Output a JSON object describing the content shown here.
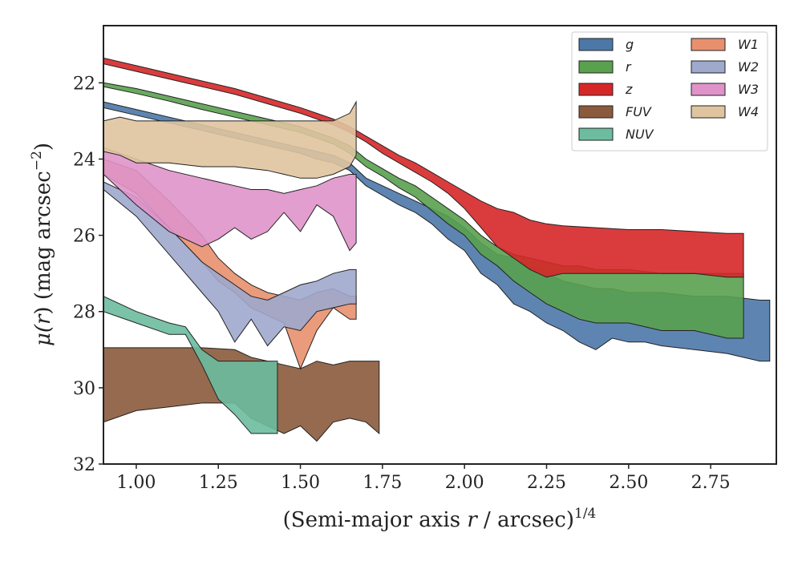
{
  "chart_data": {
    "type": "area",
    "x_axis": {
      "label_main": "(Semi-major axis ",
      "label_var": "r",
      "label_after": " / arcsec)",
      "label_exp": "1/4",
      "lim": [
        0.9,
        2.95
      ],
      "ticks": [
        1.0,
        1.25,
        1.5,
        1.75,
        2.0,
        2.25,
        2.5,
        2.75
      ],
      "tick_labels": [
        "1.00",
        "1.25",
        "1.50",
        "1.75",
        "2.00",
        "2.25",
        "2.50",
        "2.75"
      ]
    },
    "y_axis": {
      "label_mu": "μ(",
      "label_var": "r",
      "label_after": ") (mag arcsec",
      "label_exp": "−2",
      "label_close": ")",
      "lim": [
        32,
        20.5
      ],
      "inverted": true,
      "ticks": [
        22,
        24,
        26,
        28,
        30,
        32
      ],
      "tick_labels": [
        "22",
        "24",
        "26",
        "28",
        "30",
        "32"
      ]
    },
    "legend": {
      "placement": "top-right",
      "columns": 2
    },
    "series": [
      {
        "name": "g",
        "color": "#4c78a8",
        "x": [
          0.9,
          1.0,
          1.1,
          1.2,
          1.3,
          1.4,
          1.5,
          1.55,
          1.6,
          1.65,
          1.7,
          1.75,
          1.8,
          1.85,
          1.9,
          1.95,
          2.0,
          2.05,
          2.1,
          2.15,
          2.2,
          2.25,
          2.3,
          2.35,
          2.4,
          2.45,
          2.5,
          2.55,
          2.6,
          2.7,
          2.8,
          2.9,
          2.93
        ],
        "y_upper": [
          22.5,
          22.7,
          22.9,
          23.1,
          23.3,
          23.5,
          23.7,
          23.8,
          23.9,
          24.1,
          24.5,
          24.7,
          24.9,
          25.1,
          25.3,
          25.5,
          25.8,
          26.2,
          26.5,
          26.6,
          26.8,
          27.0,
          27.2,
          27.3,
          27.4,
          27.4,
          27.5,
          27.5,
          27.5,
          27.6,
          27.6,
          27.7,
          27.7
        ],
        "y_lower": [
          22.65,
          22.85,
          23.05,
          23.25,
          23.45,
          23.65,
          23.85,
          24.0,
          24.1,
          24.3,
          24.7,
          24.95,
          25.2,
          25.4,
          25.7,
          26.1,
          26.4,
          27.0,
          27.3,
          27.8,
          28.0,
          28.3,
          28.5,
          28.8,
          29.0,
          28.7,
          28.8,
          28.8,
          28.9,
          29.0,
          29.1,
          29.3,
          29.3
        ]
      },
      {
        "name": "r",
        "color": "#59a14f",
        "x": [
          0.9,
          1.0,
          1.1,
          1.2,
          1.3,
          1.4,
          1.5,
          1.55,
          1.6,
          1.65,
          1.7,
          1.75,
          1.8,
          1.85,
          1.9,
          1.95,
          2.0,
          2.05,
          2.1,
          2.15,
          2.2,
          2.25,
          2.3,
          2.35,
          2.4,
          2.45,
          2.5,
          2.6,
          2.7,
          2.8,
          2.85
        ],
        "y_upper": [
          22.0,
          22.15,
          22.35,
          22.55,
          22.75,
          22.95,
          23.15,
          23.3,
          23.45,
          23.65,
          24.0,
          24.25,
          24.5,
          24.7,
          25.0,
          25.3,
          25.6,
          26.0,
          26.3,
          26.5,
          26.6,
          26.7,
          26.8,
          26.8,
          26.9,
          26.9,
          26.9,
          27.0,
          27.0,
          27.0,
          27.0
        ],
        "y_lower": [
          22.1,
          22.28,
          22.48,
          22.7,
          22.9,
          23.1,
          23.3,
          23.45,
          23.6,
          23.85,
          24.2,
          24.45,
          24.75,
          25.0,
          25.35,
          25.7,
          26.0,
          26.5,
          26.8,
          27.2,
          27.5,
          27.8,
          28.0,
          28.2,
          28.3,
          28.3,
          28.3,
          28.5,
          28.5,
          28.7,
          28.7
        ]
      },
      {
        "name": "z",
        "color": "#d62728",
        "x": [
          0.9,
          1.0,
          1.1,
          1.2,
          1.3,
          1.4,
          1.5,
          1.55,
          1.6,
          1.65,
          1.7,
          1.75,
          1.8,
          1.85,
          1.9,
          1.95,
          2.0,
          2.05,
          2.1,
          2.15,
          2.2,
          2.25,
          2.3,
          2.4,
          2.5,
          2.6,
          2.7,
          2.8,
          2.85
        ],
        "y_upper": [
          21.35,
          21.55,
          21.75,
          21.95,
          22.15,
          22.4,
          22.65,
          22.8,
          22.95,
          23.15,
          23.4,
          23.65,
          23.9,
          24.1,
          24.35,
          24.6,
          24.85,
          25.1,
          25.3,
          25.4,
          25.6,
          25.7,
          25.75,
          25.8,
          25.85,
          25.85,
          25.9,
          25.95,
          25.95
        ],
        "y_lower": [
          21.5,
          21.7,
          21.9,
          22.1,
          22.3,
          22.55,
          22.8,
          22.95,
          23.1,
          23.3,
          23.55,
          23.85,
          24.1,
          24.35,
          24.6,
          24.9,
          25.3,
          25.8,
          26.3,
          26.6,
          26.9,
          27.1,
          27.0,
          27.0,
          27.0,
          27.0,
          27.0,
          27.1,
          27.1
        ]
      },
      {
        "name": "FUV",
        "color": "#8b5a3c",
        "x": [
          0.9,
          1.0,
          1.1,
          1.2,
          1.3,
          1.35,
          1.4,
          1.45,
          1.5,
          1.55,
          1.6,
          1.65,
          1.7,
          1.74
        ],
        "y_upper": [
          28.95,
          28.95,
          28.95,
          28.95,
          29.0,
          29.2,
          29.3,
          29.4,
          29.5,
          29.3,
          29.4,
          29.3,
          29.3,
          29.3
        ],
        "y_lower": [
          30.9,
          30.6,
          30.5,
          30.4,
          30.4,
          30.8,
          31.0,
          31.2,
          31.0,
          31.4,
          30.9,
          30.8,
          30.9,
          31.2
        ]
      },
      {
        "name": "NUV",
        "color": "#6cbda0",
        "x": [
          0.9,
          1.0,
          1.1,
          1.15,
          1.2,
          1.25,
          1.3,
          1.35,
          1.4,
          1.43
        ],
        "y_upper": [
          27.6,
          28.0,
          28.3,
          28.4,
          29.0,
          29.3,
          29.3,
          29.3,
          29.3,
          29.3
        ],
        "y_lower": [
          28.0,
          28.3,
          28.6,
          28.6,
          29.4,
          30.3,
          30.7,
          31.2,
          31.2,
          31.2
        ]
      },
      {
        "name": "W1",
        "color": "#e8906e",
        "x": [
          0.9,
          1.0,
          1.1,
          1.2,
          1.25,
          1.3,
          1.35,
          1.4,
          1.45,
          1.5,
          1.55,
          1.6,
          1.65,
          1.67
        ],
        "y_upper": [
          24.0,
          24.3,
          25.1,
          26.0,
          26.6,
          27.0,
          27.3,
          27.5,
          27.6,
          27.7,
          27.5,
          27.4,
          27.6,
          27.6
        ],
        "y_lower": [
          24.4,
          24.9,
          25.8,
          26.7,
          27.2,
          27.5,
          27.9,
          28.1,
          28.3,
          29.5,
          28.5,
          27.9,
          28.2,
          28.2
        ]
      },
      {
        "name": "W2",
        "color": "#9ea9cc",
        "x": [
          0.9,
          1.0,
          1.1,
          1.2,
          1.25,
          1.3,
          1.35,
          1.4,
          1.45,
          1.5,
          1.55,
          1.6,
          1.65,
          1.67
        ],
        "y_upper": [
          24.6,
          25.0,
          25.8,
          26.7,
          27.0,
          27.3,
          27.6,
          27.7,
          27.5,
          27.3,
          27.2,
          27.0,
          26.9,
          26.9
        ],
        "y_lower": [
          24.8,
          25.5,
          26.5,
          27.5,
          28.0,
          28.8,
          28.2,
          28.9,
          28.4,
          28.5,
          28.0,
          27.9,
          27.8,
          27.8
        ]
      },
      {
        "name": "W3",
        "color": "#df93c9",
        "x": [
          0.9,
          1.0,
          1.1,
          1.2,
          1.25,
          1.3,
          1.35,
          1.4,
          1.45,
          1.5,
          1.55,
          1.6,
          1.65,
          1.67
        ],
        "y_upper": [
          23.7,
          24.0,
          24.3,
          24.5,
          24.6,
          24.7,
          24.8,
          24.8,
          24.9,
          24.8,
          24.7,
          24.5,
          24.4,
          24.4
        ],
        "y_lower": [
          24.4,
          25.2,
          25.9,
          26.3,
          26.1,
          25.8,
          26.1,
          25.9,
          25.4,
          25.9,
          25.2,
          25.5,
          26.4,
          26.2
        ]
      },
      {
        "name": "W4",
        "color": "#dfc4a0",
        "x": [
          0.9,
          0.95,
          1.0,
          1.1,
          1.2,
          1.3,
          1.4,
          1.45,
          1.5,
          1.55,
          1.6,
          1.65,
          1.67
        ],
        "y_upper": [
          23.0,
          22.9,
          23.0,
          23.0,
          23.0,
          23.0,
          23.0,
          23.0,
          23.0,
          23.0,
          23.0,
          22.8,
          22.5
        ],
        "y_lower": [
          23.8,
          23.9,
          24.1,
          24.1,
          24.2,
          24.2,
          24.3,
          24.4,
          24.5,
          24.5,
          24.4,
          24.2,
          23.9
        ]
      }
    ]
  }
}
